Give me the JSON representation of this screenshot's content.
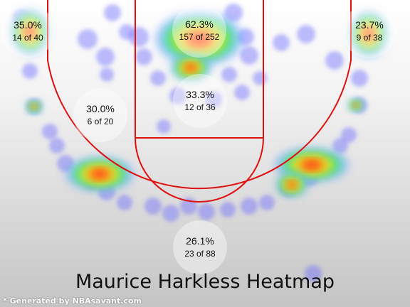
{
  "chart_data": {
    "type": "heatmap",
    "title": "Maurice Harkless Heatmap",
    "zones": [
      {
        "name": "left-corner-three",
        "pct": "35.0%",
        "made": 14,
        "att": 40
      },
      {
        "name": "paint",
        "pct": "62.3%",
        "made": 157,
        "att": 252
      },
      {
        "name": "right-corner-three",
        "pct": "23.7%",
        "made": 9,
        "att": 38
      },
      {
        "name": "left-midrange",
        "pct": "30.0%",
        "made": 6,
        "att": 20
      },
      {
        "name": "free-throw-area",
        "pct": "33.3%",
        "made": 12,
        "att": 36
      },
      {
        "name": "top-of-key-three",
        "pct": "26.1%",
        "made": 23,
        "att": 88
      }
    ]
  },
  "credit": "* Generated by NBAsavant.com",
  "colors": {
    "court_line": "#e01010",
    "cold": "#6a6aff",
    "hot": "#ff3a10"
  }
}
